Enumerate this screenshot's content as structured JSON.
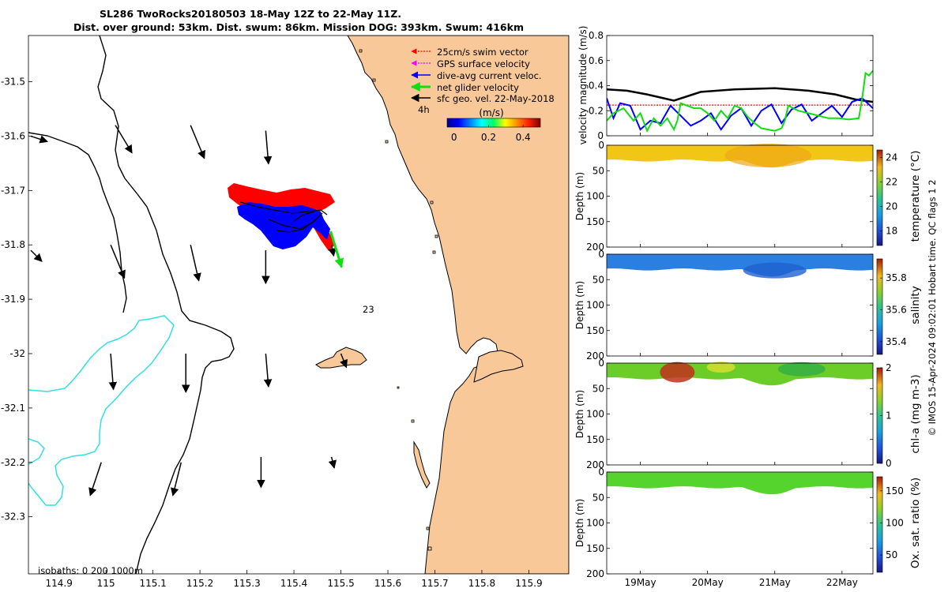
{
  "title_line1": "SL286 TwoRocks20180503 18-May 12Z to 22-May 11Z.",
  "title_line2": "Dist. over ground: 53km. Dist. swum: 86km. Mission DOG: 393km. Swum: 416km",
  "copyright": "© IMOS 15-Apr-2024 09:02:01 Hobart time. QC flags 1  2",
  "chart_data": [
    {
      "type": "map",
      "name": "glider track and velocity map",
      "x_ticks": [
        "114.9",
        "115",
        "115.1",
        "115.2",
        "115.3",
        "115.4",
        "115.5",
        "115.6",
        "115.7",
        "115.8",
        "115.9"
      ],
      "x_tick_values": [
        114.9,
        115.0,
        115.1,
        115.2,
        115.3,
        115.4,
        115.5,
        115.6,
        115.7,
        115.8,
        115.9
      ],
      "y_ticks": [
        "-31.5",
        "-31.6",
        "-31.7",
        "-31.8",
        "-31.9",
        "-32",
        "-32.1",
        "-32.2",
        "-32.3"
      ],
      "y_tick_values": [
        -31.5,
        -31.6,
        -31.7,
        -31.8,
        -31.9,
        -32.0,
        -32.1,
        -32.2,
        -32.3
      ],
      "xlim": [
        114.835,
        115.985
      ],
      "ylim": [
        -32.405,
        -31.415
      ],
      "legend": [
        {
          "label": "25cm/s swim vector",
          "color": "#ff0000",
          "style": "dotted-arrow"
        },
        {
          "label": "GPS surface velocity",
          "color": "#ff00ff",
          "style": "dotted-arrow"
        },
        {
          "label": "dive-avg current veloc.",
          "color": "#0000ff",
          "style": "arrow"
        },
        {
          "label": "net glider velocity",
          "color": "#00dd00",
          "style": "thick-arrow"
        },
        {
          "label": "sfc geo. vel. 22-May-2018",
          "color": "#000000",
          "style": "arrow"
        }
      ],
      "scale_label": "4h",
      "colorbar": {
        "label": "(m/s)",
        "ticks": [
          "0",
          "0.2",
          "0.4"
        ],
        "tick_values": [
          0,
          0.2,
          0.4
        ],
        "range": [
          -0.04,
          0.5
        ]
      },
      "annotation": "23",
      "isobaths_label": "isobaths: 0   200  1000m",
      "land_color": "#f8c898",
      "geostrophic_vectors": [
        {
          "lon": 114.84,
          "lat": -31.6,
          "u": 0.03,
          "v": -0.01
        },
        {
          "lon": 114.84,
          "lat": -31.81,
          "u": 0.02,
          "v": -0.02
        },
        {
          "lon": 115.02,
          "lat": -31.58,
          "u": 0.03,
          "v": -0.05
        },
        {
          "lon": 115.18,
          "lat": -31.58,
          "u": 0.025,
          "v": -0.06
        },
        {
          "lon": 115.34,
          "lat": -31.59,
          "u": 0.005,
          "v": -0.06
        },
        {
          "lon": 115.01,
          "lat": -31.8,
          "u": 0.025,
          "v": -0.06
        },
        {
          "lon": 115.18,
          "lat": -31.8,
          "u": 0.015,
          "v": -0.065
        },
        {
          "lon": 115.34,
          "lat": -31.81,
          "u": 0.0,
          "v": -0.06
        },
        {
          "lon": 115.48,
          "lat": -31.8,
          "u": 0.004,
          "v": -0.02
        },
        {
          "lon": 115.01,
          "lat": -32.0,
          "u": 0.005,
          "v": -0.065
        },
        {
          "lon": 115.17,
          "lat": -32.0,
          "u": 0.0,
          "v": -0.07
        },
        {
          "lon": 115.34,
          "lat": -32.0,
          "u": 0.005,
          "v": -0.06
        },
        {
          "lon": 115.5,
          "lat": -32.0,
          "u": 0.01,
          "v": -0.025
        },
        {
          "lon": 114.99,
          "lat": -32.2,
          "u": -0.02,
          "v": -0.06
        },
        {
          "lon": 115.16,
          "lat": -32.2,
          "u": -0.015,
          "v": -0.06
        },
        {
          "lon": 115.33,
          "lat": -32.19,
          "u": 0.0,
          "v": -0.055
        },
        {
          "lon": 115.48,
          "lat": -32.19,
          "u": 0.005,
          "v": -0.02
        }
      ],
      "net_glider_vector": {
        "lon": 115.478,
        "lat": -31.775,
        "u": 0.02,
        "v": -0.065
      }
    },
    {
      "type": "line",
      "name": "velocity magnitude time series",
      "ylabel": "velocity magnitude (m/s)",
      "y_ticks": [
        "0",
        "0.2",
        "0.4",
        "0.6",
        "0.8"
      ],
      "y_tick_values": [
        0,
        0.2,
        0.4,
        0.6,
        0.8
      ],
      "ylim": [
        0,
        0.8
      ],
      "xlim": [
        18.5,
        22.46
      ],
      "series": [
        {
          "name": "sfc geo. vel.",
          "color": "#000000",
          "x": [
            18.5,
            18.8,
            19.1,
            19.5,
            19.9,
            20.4,
            21.0,
            21.5,
            21.9,
            22.2,
            22.46
          ],
          "y": [
            0.37,
            0.36,
            0.33,
            0.28,
            0.35,
            0.37,
            0.38,
            0.36,
            0.33,
            0.29,
            0.27
          ]
        },
        {
          "name": "25cm/s swim vector",
          "color": "#ff0000",
          "x": [
            18.5,
            22.46
          ],
          "y": [
            0.245,
            0.245
          ]
        },
        {
          "name": "dive-avg current veloc.",
          "color": "#0000ff",
          "x": [
            18.5,
            18.6,
            18.7,
            18.85,
            19.0,
            19.15,
            19.3,
            19.45,
            19.6,
            19.75,
            19.9,
            20.05,
            20.2,
            20.35,
            20.5,
            20.65,
            20.8,
            20.95,
            21.1,
            21.25,
            21.4,
            21.55,
            21.7,
            21.85,
            22.0,
            22.15,
            22.3,
            22.46
          ],
          "y": [
            0.3,
            0.14,
            0.26,
            0.24,
            0.05,
            0.12,
            0.1,
            0.24,
            0.16,
            0.08,
            0.12,
            0.18,
            0.05,
            0.16,
            0.22,
            0.08,
            0.2,
            0.25,
            0.1,
            0.21,
            0.25,
            0.12,
            0.18,
            0.24,
            0.15,
            0.27,
            0.3,
            0.22
          ]
        },
        {
          "name": "net glider velocity",
          "color": "#11dd11",
          "x": [
            18.5,
            18.6,
            18.75,
            18.9,
            19.0,
            19.1,
            19.2,
            19.3,
            19.4,
            19.5,
            19.55,
            19.6,
            19.7,
            19.8,
            19.9,
            20.0,
            20.1,
            20.2,
            20.3,
            20.4,
            20.5,
            20.6,
            20.7,
            20.8,
            20.9,
            21.0,
            21.1,
            21.15,
            21.2,
            21.35,
            21.5,
            21.65,
            21.8,
            21.95,
            22.1,
            22.25,
            22.3,
            22.35,
            22.4,
            22.46
          ],
          "y": [
            0.12,
            0.18,
            0.22,
            0.12,
            0.18,
            0.04,
            0.14,
            0.08,
            0.14,
            0.05,
            0.12,
            0.26,
            0.24,
            0.22,
            0.22,
            0.18,
            0.12,
            0.2,
            0.14,
            0.24,
            0.22,
            0.15,
            0.1,
            0.06,
            0.05,
            0.04,
            0.06,
            0.12,
            0.24,
            0.2,
            0.18,
            0.16,
            0.14,
            0.14,
            0.13,
            0.14,
            0.3,
            0.5,
            0.48,
            0.52
          ]
        }
      ]
    },
    {
      "type": "heatmap",
      "name": "temperature section",
      "ylabel": "Depth (m)",
      "y_ticks": [
        "0",
        "50",
        "100",
        "150",
        "200"
      ],
      "ylim": [
        0,
        200
      ],
      "cblabel": "temperature (°C)",
      "cb_ticks": [
        "18",
        "20",
        "22",
        "24"
      ],
      "cb_tick_values": [
        18,
        20,
        22,
        24
      ],
      "cb_range": [
        16.8,
        24.6
      ],
      "approx_value": 23.6,
      "fill_color": "#f2c616"
    },
    {
      "type": "heatmap",
      "name": "salinity section",
      "ylabel": "Depth (m)",
      "y_ticks": [
        "0",
        "50",
        "100",
        "150",
        "200"
      ],
      "ylim": [
        0,
        200
      ],
      "cblabel": "salinity",
      "cb_ticks": [
        "35.4",
        "35.6",
        "35.8"
      ],
      "cb_tick_values": [
        35.4,
        35.6,
        35.8
      ],
      "cb_range": [
        35.32,
        35.92
      ],
      "approx_value": 35.53,
      "fill_color": "#2b7fe0"
    },
    {
      "type": "heatmap",
      "name": "chl-a section",
      "ylabel": "Depth (m)",
      "y_ticks": [
        "0",
        "50",
        "100",
        "150",
        "200"
      ],
      "ylim": [
        0,
        200
      ],
      "cblabel": "chl-a (mg m-3)",
      "cb_ticks": [
        "0",
        "1",
        "2"
      ],
      "cb_tick_values": [
        0,
        1,
        2
      ],
      "cb_range": [
        0,
        2
      ],
      "approx_value": 1.25,
      "fill_color": "#6ccc28"
    },
    {
      "type": "heatmap",
      "name": "oxygen saturation section",
      "ylabel": "Depth (m)",
      "y_ticks": [
        "0",
        "50",
        "100",
        "150",
        "200"
      ],
      "ylim": [
        0,
        200
      ],
      "cblabel": "Ox. sat. ratio (%)",
      "cb_ticks": [
        "50",
        "100",
        "150"
      ],
      "cb_tick_values": [
        50,
        100,
        150
      ],
      "cb_range": [
        23,
        172
      ],
      "approx_value": 105,
      "fill_color": "#55d42e"
    },
    {
      "type": "time_axis",
      "x_ticks": [
        "19May",
        "20May",
        "21May",
        "22May"
      ],
      "x_tick_values": [
        19,
        20,
        21,
        22
      ]
    }
  ]
}
